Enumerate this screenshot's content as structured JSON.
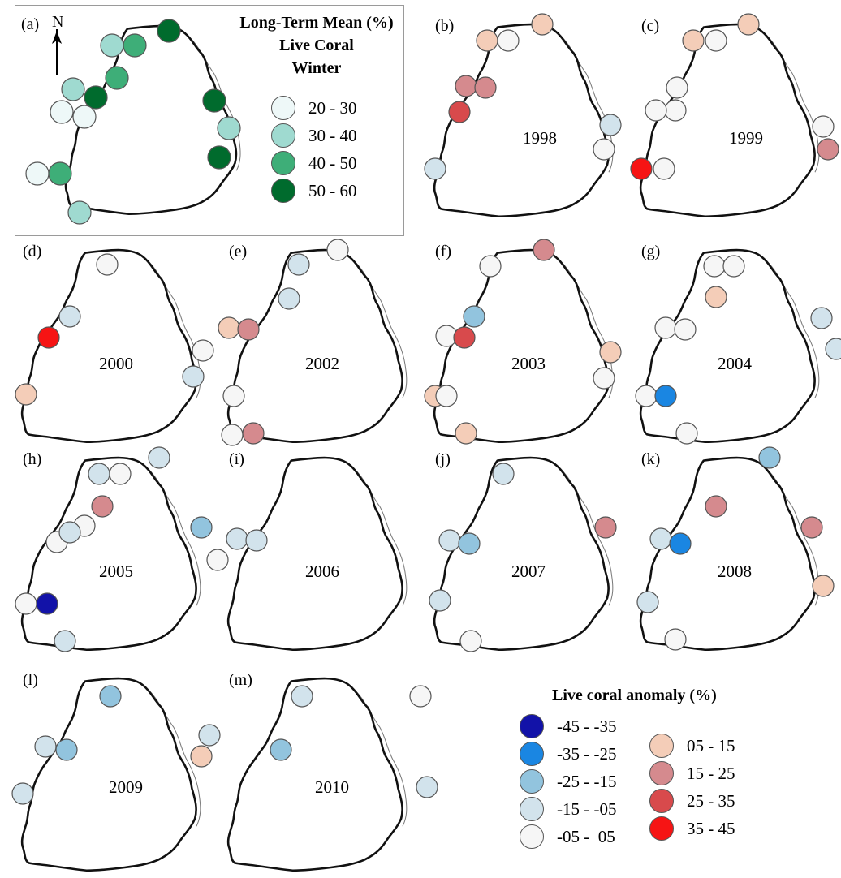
{
  "ltm_panel": {
    "label": "(a)",
    "north": "N",
    "title_lines": [
      "Long-Term Mean (%)",
      "Live Coral",
      "Winter"
    ],
    "classes": [
      {
        "label": "20 - 30",
        "color": "#eef8f8"
      },
      {
        "label": "30 - 40",
        "color": "#9fdad0"
      },
      {
        "label": "40 - 50",
        "color": "#3eae78"
      },
      {
        "label": "50 - 60",
        "color": "#006b2d"
      }
    ],
    "sites": [
      "30 - 40",
      "40 - 50",
      "50 - 60",
      "30 - 40",
      "50 - 60",
      "40 - 50",
      "20 - 30",
      "20 - 30",
      "50 - 60",
      "30 - 40",
      "50 - 60",
      "20 - 30",
      "40 - 50",
      "30 - 40"
    ]
  },
  "anomaly_legend": {
    "title": "Live coral anomaly (%)",
    "classes": [
      {
        "label": "-45 - -35",
        "color": "#1212a8"
      },
      {
        "label": "-35 - -25",
        "color": "#1a86e2"
      },
      {
        "label": "-25 - -15",
        "color": "#92c4de"
      },
      {
        "label": "-15 - -05",
        "color": "#d2e3ec"
      },
      {
        "label": "-05 -  05",
        "color": "#f6f6f6"
      },
      {
        "label": "05 - 15",
        "color": "#f4cdb8"
      },
      {
        "label": "15 - 25",
        "color": "#d58a8e"
      },
      {
        "label": "25 - 35",
        "color": "#d84a4c"
      },
      {
        "label": "35 - 45",
        "color": "#f61414"
      }
    ]
  },
  "anomaly_maps": [
    {
      "label": "(b)",
      "year": "1998",
      "sites": [
        "05 - 15",
        "-05 -  05",
        "05 - 15",
        "15 - 25",
        "15 - 25",
        "25 - 35",
        "-15 - -05",
        "-05 -  05",
        "-15 - -05"
      ]
    },
    {
      "label": "(c)",
      "year": "1999",
      "sites": [
        "05 - 15",
        "-05 -  05",
        "05 - 15",
        "-05 -  05",
        "-05 -  05",
        "-05 -  05",
        "-05 -  05",
        "15 - 25",
        "35 - 45",
        "-05 -  05"
      ]
    },
    {
      "label": "(d)",
      "year": "2000",
      "sites": [
        "-05 -  05",
        "-15 - -05",
        "35 - 45",
        "-05 -  05",
        "-15 - -05",
        "05 - 15"
      ]
    },
    {
      "label": "(e)",
      "year": "2002",
      "sites": [
        "-05 -  05",
        "-15 - -05",
        "-15 - -05",
        "05 - 15",
        "15 - 25",
        "-05 -  05",
        "15 - 25",
        "-05 -  05"
      ]
    },
    {
      "label": "(f)",
      "year": "2003",
      "sites": [
        "-05 -  05",
        "15 - 25",
        "-25 - -15",
        "-05 -  05",
        "25 - 35",
        "05 - 15",
        "-05 -  05",
        "05 - 15",
        "-05 -  05",
        "05 - 15"
      ]
    },
    {
      "label": "(g)",
      "year": "2004",
      "sites": [
        "-05 -  05",
        "-05 -  05",
        "05 - 15",
        "-05 -  05",
        "-05 -  05",
        "-15 - -05",
        "-15 - -05",
        "-05 -  05",
        "-35 - -25",
        "-05 -  05"
      ]
    },
    {
      "label": "(h)",
      "year": "2005",
      "sites": [
        "-15 - -05",
        "-05 -  05",
        "-15 - -05",
        "15 - 25",
        "-05 -  05",
        "-05 -  05",
        "-15 - -05",
        "-25 - -15",
        "-05 -  05",
        "-05 -  05",
        "-45 - -35",
        "-15 - -05"
      ]
    },
    {
      "label": "(i)",
      "year": "2006",
      "sites": [
        "-15 - -05",
        "-15 - -05"
      ]
    },
    {
      "label": "(j)",
      "year": "2007",
      "sites": [
        "-15 - -05",
        "-15 - -05",
        "-25 - -15",
        "15 - 25",
        "-15 - -05",
        "-05 -  05"
      ]
    },
    {
      "label": "(k)",
      "year": "2008",
      "sites": [
        "-25 - -15",
        "15 - 25",
        "-15 - -05",
        "-35 - -25",
        "15 - 25",
        "05 - 15",
        "-15 - -05",
        "-05 -  05"
      ]
    },
    {
      "label": "(l)",
      "year": "2009",
      "sites": [
        "-25 - -15",
        "-15 - -05",
        "-25 - -15",
        "-15 - -05",
        "05 - 15",
        "-15 - -05"
      ]
    },
    {
      "label": "(m)",
      "year": "2010",
      "sites": [
        "-15 - -05",
        "-05 -  05",
        "-25 - -15",
        "-15 - -05"
      ]
    }
  ]
}
